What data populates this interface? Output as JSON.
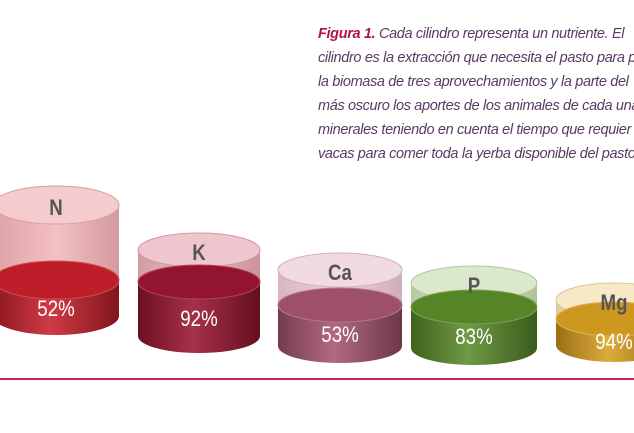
{
  "caption": {
    "label": "Figura 1.",
    "lines": [
      "Cada cilindro representa un nutriente. El",
      "cilindro es la extracción que necesita el pasto para p",
      "la biomasa de tres aprovechamientos y la parte del",
      "más oscuro los aportes de los animales de cada una",
      "minerales teniendo en cuenta el tiempo que requier",
      "vacas para comer toda la yerba disponible del pasto"
    ],
    "label_color": "#b0163f",
    "text_color": "#5a3a63"
  },
  "chart_data": {
    "type": "bar",
    "style": "3d-cylinder",
    "categories": [
      "N",
      "K",
      "Ca",
      "P",
      "Mg"
    ],
    "values": [
      52,
      92,
      53,
      83,
      94
    ],
    "value_labels": [
      "52%",
      "92%",
      "53%",
      "83%",
      "94%"
    ],
    "value_unit": "%",
    "colors": [
      "#c8202c",
      "#9a1530",
      "#a65470",
      "#5a8c2a",
      "#d9a020"
    ],
    "light_colors": [
      "#f0b0b4",
      "#e6a8b2",
      "#eac6d2",
      "#c8dcb0",
      "#f2dca8"
    ],
    "legend": "none",
    "grid": false
  },
  "rule_color": "#c8234d"
}
